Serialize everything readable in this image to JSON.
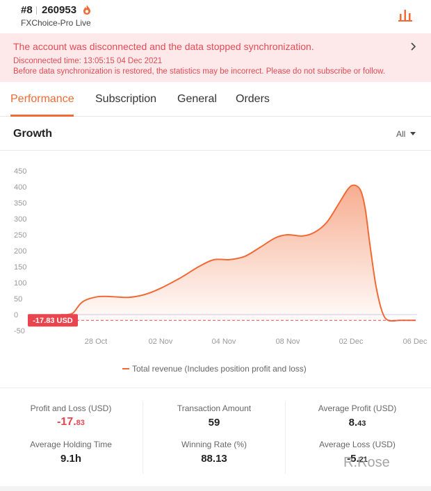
{
  "header": {
    "rank": "#8",
    "account_id": "260953",
    "broker": "FXChoice-Pro Live"
  },
  "alert": {
    "title": "The account was disconnected and the data stopped synchronization.",
    "disconnected_time": "Disconnected time: 13:05:15 04 Dec 2021",
    "notice": "Before data synchronization is restored, the statistics may be incorrect. Please do not subscribe or follow."
  },
  "tabs": [
    {
      "label": "Performance",
      "active": true
    },
    {
      "label": "Subscription",
      "active": false
    },
    {
      "label": "General",
      "active": false
    },
    {
      "label": "Orders",
      "active": false
    }
  ],
  "growth": {
    "title": "Growth",
    "range": "All"
  },
  "chart_data": {
    "type": "area",
    "title": "",
    "y_ticks": [
      "450",
      "400",
      "350",
      "300",
      "250",
      "200",
      "150",
      "100",
      "50",
      "0",
      "-50"
    ],
    "ylim": [
      -50,
      450
    ],
    "x_ticks": [
      "28 Oct",
      "02 Nov",
      "04 Nov",
      "08 Nov",
      "02 Dec",
      "06 Dec"
    ],
    "current_value_label": "-17.83 USD",
    "current_value": -17.83,
    "legend": [
      "Total revenue (Includes position profit and loss)"
    ],
    "grid": false,
    "accent_color": "#f06a35",
    "series": [
      {
        "name": "Total revenue (Includes position profit and loss)",
        "points": [
          [
            0,
            0
          ],
          [
            4,
            0
          ],
          [
            8,
            6
          ],
          [
            14,
            40
          ],
          [
            24,
            56
          ],
          [
            34,
            56
          ],
          [
            44,
            54
          ],
          [
            54,
            62
          ],
          [
            64,
            80
          ],
          [
            78,
            115
          ],
          [
            90,
            150
          ],
          [
            100,
            172
          ],
          [
            110,
            172
          ],
          [
            120,
            182
          ],
          [
            130,
            210
          ],
          [
            140,
            240
          ],
          [
            148,
            250
          ],
          [
            158,
            246
          ],
          [
            166,
            258
          ],
          [
            174,
            290
          ],
          [
            182,
            350
          ],
          [
            188,
            395
          ],
          [
            192,
            405
          ],
          [
            196,
            388
          ],
          [
            199,
            330
          ],
          [
            202,
            220
          ],
          [
            206,
            90
          ],
          [
            210,
            10
          ],
          [
            214,
            -17.83
          ],
          [
            222,
            -17.83
          ],
          [
            232,
            -17.83
          ]
        ]
      }
    ]
  },
  "stats": [
    {
      "label": "Profit and Loss (USD)",
      "value_main": "-17.",
      "value_small": "83",
      "negative": true
    },
    {
      "label": "Transaction Amount",
      "value_main": "59"
    },
    {
      "label": "Average Profit (USD)",
      "value_main": "8.",
      "value_small": "43"
    },
    {
      "label": "Average Holding Time",
      "value_main": "9.1h"
    },
    {
      "label": "Winning Rate (%)",
      "value_main": "88.13"
    },
    {
      "label": "Average Loss (USD)",
      "value_main": "-5.",
      "value_small": "21"
    }
  ],
  "watermark": "R.Rose",
  "icons": {
    "flame": "flame-icon",
    "chart": "bar-chart-icon",
    "alert_chevron": "chevron-right-icon",
    "range_caret": "caret-down-icon"
  }
}
